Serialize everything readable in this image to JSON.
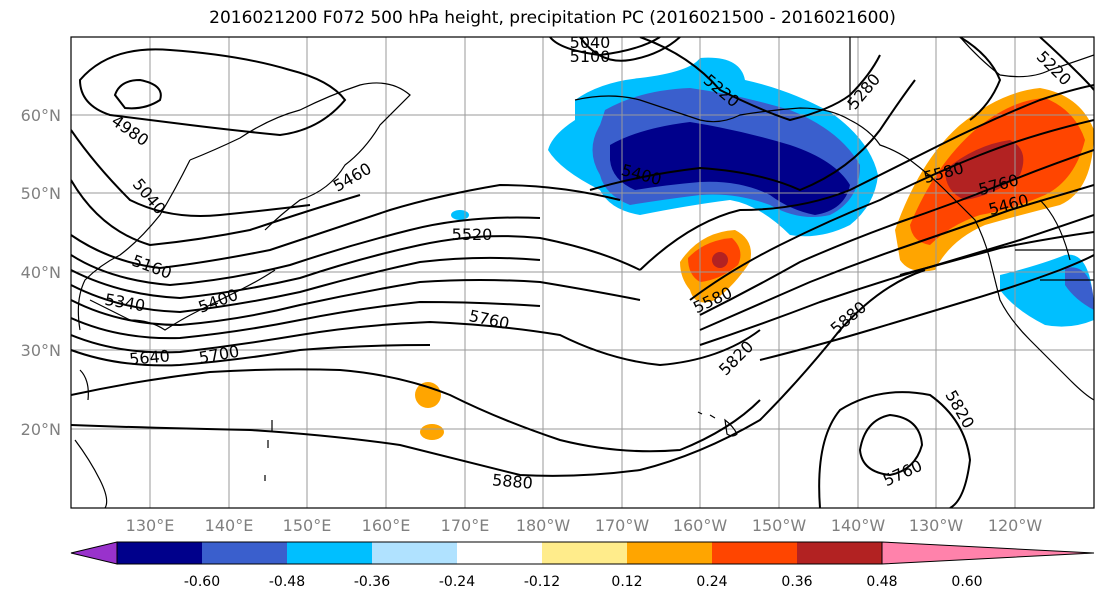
{
  "title": "2016021200 F072 500 hPa height, precipitation PC (2016021500 - 2016021600)",
  "lat_labels": [
    "60°N",
    "50°N",
    "40°N",
    "30°N",
    "20°N"
  ],
  "lon_labels": [
    "130°E",
    "140°E",
    "150°E",
    "160°E",
    "170°E",
    "180°W",
    "170°W",
    "160°W",
    "150°W",
    "140°W",
    "130°W",
    "120°W"
  ],
  "contour_labels": [
    "5040",
    "5100",
    "5220",
    "5280",
    "5220",
    "4980",
    "5040",
    "5160",
    "5340",
    "5400",
    "5520",
    "5460",
    "5400",
    "5580",
    "5640",
    "5700",
    "5760",
    "5580",
    "5820",
    "5880",
    "5820",
    "5760",
    "5880",
    "5760",
    "5460"
  ],
  "colorbar": {
    "colors": [
      "#9932CC",
      "#00008B",
      "#3A5FCD",
      "#00BFFF",
      "#B0E2FF",
      "#FFFFFF",
      "#FFEC8B",
      "#FFA500",
      "#FF4500",
      "#B22222",
      "#FF82AB"
    ],
    "tick_labels": [
      "-0.60",
      "-0.48",
      "-0.36",
      "-0.24",
      "-0.12",
      "0.12",
      "0.24",
      "0.36",
      "0.48",
      "0.60"
    ]
  }
}
